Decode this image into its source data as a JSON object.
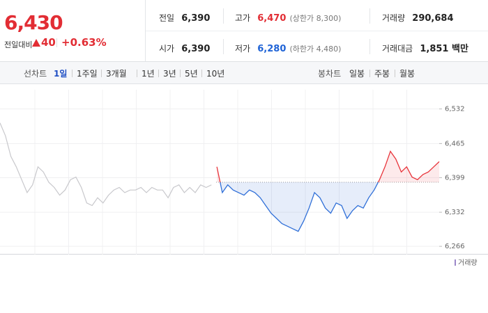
{
  "quote": {
    "price": "6,430",
    "change_label": "전일대비",
    "change": "40",
    "change_pct": "+0.63%"
  },
  "stats": [
    {
      "label": "전일",
      "value": "6,390"
    },
    {
      "label": "고가",
      "value": "6,470",
      "note": "(상한가 8,300)"
    },
    {
      "label": "거래량",
      "value": "290,684"
    },
    {
      "label": "시가",
      "value": "6,390"
    },
    {
      "label": "저가",
      "value": "6,280",
      "note": "(하한가 4,480)"
    },
    {
      "label": "거래대금",
      "value": "1,851 백만"
    }
  ],
  "tabs": {
    "line_label": "선차트",
    "line": [
      "1일",
      "1주일",
      "3개월",
      "1년",
      "3년",
      "5년",
      "10년"
    ],
    "candle_label": "봉차트",
    "candle": [
      "일봉",
      "주봉",
      "월봉"
    ]
  },
  "chart_data": {
    "type": "line",
    "ylim": [
      6250,
      6580
    ],
    "yticks": [
      {
        "value": 6266,
        "label": "6,266"
      },
      {
        "value": 6332,
        "label": "6,332"
      },
      {
        "value": 6399,
        "label": "6,399"
      },
      {
        "value": 6465,
        "label": "6,465"
      },
      {
        "value": 6532,
        "label": "6,532"
      }
    ],
    "grid": true,
    "baseline": 6390,
    "color_up": "#e8343b",
    "color_down": "#2f6fd8",
    "series": [
      {
        "color": "#c8c8cc",
        "values": [
          6505,
          6480,
          6440,
          6420,
          6395,
          6370,
          6385,
          6420,
          6410,
          6390,
          6380,
          6365,
          6375,
          6395,
          6400,
          6380,
          6350,
          6345,
          6360,
          6350,
          6365,
          6375,
          6380,
          6370,
          6375,
          6375,
          6380,
          6370,
          6380,
          6375,
          6375,
          6360,
          6380,
          6385,
          6370,
          6380,
          6370,
          6385,
          6380,
          6385,
          null,
          null,
          null,
          null,
          null,
          null,
          null,
          null,
          null,
          null,
          null,
          null,
          null,
          null,
          null,
          null,
          null,
          null,
          null,
          null,
          null,
          null,
          null,
          null,
          null,
          null,
          null,
          null,
          null,
          null,
          null,
          null,
          null,
          null,
          null,
          null,
          null,
          null,
          null,
          null,
          null,
          null
        ]
      },
      {
        "color": "split",
        "values": [
          null,
          null,
          null,
          null,
          null,
          null,
          null,
          null,
          null,
          null,
          null,
          null,
          null,
          null,
          null,
          null,
          null,
          null,
          null,
          null,
          null,
          null,
          null,
          null,
          null,
          null,
          null,
          null,
          null,
          null,
          null,
          null,
          null,
          null,
          null,
          null,
          null,
          null,
          null,
          null,
          6420,
          6370,
          6385,
          6375,
          6370,
          6365,
          6375,
          6370,
          6360,
          6345,
          6330,
          6320,
          6310,
          6305,
          6300,
          6295,
          6315,
          6340,
          6370,
          6360,
          6340,
          6330,
          6350,
          6345,
          6320,
          6335,
          6345,
          6340,
          6360,
          6375,
          6395,
          6420,
          6450,
          6435,
          6410,
          6420,
          6400,
          6395,
          6405,
          6410,
          6420,
          6430
        ]
      }
    ],
    "volume_label": "거래량",
    "volume_color": "#9b87c9"
  }
}
